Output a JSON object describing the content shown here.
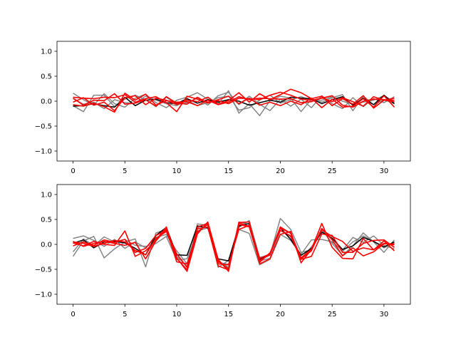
{
  "chart_data": [
    {
      "type": "line",
      "title": "",
      "xlabel": "",
      "ylabel": "",
      "xlim": [
        -1.55,
        32.55
      ],
      "ylim": [
        -1.2,
        1.2
      ],
      "xticks": [
        0,
        5,
        10,
        15,
        20,
        25,
        30
      ],
      "yticks": [
        -1.0,
        -0.5,
        0.0,
        0.5,
        1.0
      ],
      "xtick_labels": [
        "0",
        "5",
        "10",
        "15",
        "20",
        "25",
        "30"
      ],
      "ytick_labels": [
        "−1.0",
        "−0.5",
        "0.0",
        "0.5",
        "1.0"
      ],
      "grid": false,
      "x": [
        0,
        1,
        2,
        3,
        4,
        5,
        6,
        7,
        8,
        9,
        10,
        11,
        12,
        13,
        14,
        15,
        16,
        17,
        18,
        19,
        20,
        21,
        22,
        23,
        24,
        25,
        26,
        27,
        28,
        29,
        30,
        31
      ],
      "series": [
        {
          "color": "#808080",
          "values": [
            0.16,
            0.03,
            -0.08,
            0.15,
            -0.05,
            -0.12,
            0.06,
            0.14,
            -0.03,
            -0.13,
            0.02,
            0.08,
            0.17,
            0.04,
            -0.06,
            0.21,
            -0.24,
            -0.05,
            -0.29,
            0.01,
            0.1,
            0.06,
            -0.21,
            0.04,
            -0.02,
            0.07,
            0.13,
            -0.19,
            0.1,
            -0.07,
            0.03,
            -0.05
          ]
        },
        {
          "color": "#808080",
          "values": [
            -0.09,
            -0.21,
            0.12,
            0.12,
            -0.11,
            0.04,
            0.12,
            0.03,
            -0.11,
            0.08,
            -0.07,
            -0.03,
            0.06,
            -0.08,
            0.11,
            0.18,
            -0.07,
            0.1,
            -0.06,
            -0.19,
            0.04,
            -0.1,
            0.04,
            -0.13,
            0.11,
            -0.05,
            -0.15,
            0.07,
            -0.11,
            0.05,
            -0.03,
            0.09
          ]
        },
        {
          "color": "#808080",
          "values": [
            0.05,
            -0.06,
            -0.02,
            -0.15,
            0.03,
            -0.03,
            -0.04,
            0.1,
            0.02,
            -0.05,
            -0.09,
            0.02,
            -0.09,
            -0.03,
            0.07,
            0.1,
            -0.18,
            -0.13,
            0.02,
            0.12,
            -0.04,
            0.03,
            0.09,
            0.02,
            0.02,
            0.09,
            0.0,
            -0.06,
            -0.02,
            0.02,
            0.11,
            -0.02
          ]
        },
        {
          "color": "#000000",
          "values": [
            -0.1,
            -0.09,
            -0.05,
            -0.09,
            -0.12,
            0.08,
            -0.09,
            0.02,
            0.04,
            -0.03,
            -0.05,
            0.05,
            -0.04,
            0.03,
            -0.02,
            0.03,
            0.0,
            -0.08,
            -0.03,
            0.02,
            -0.02,
            0.08,
            0.06,
            0.05,
            -0.05,
            0.03,
            0.09,
            -0.08,
            0.06,
            -0.07,
            0.12,
            -0.05
          ]
        },
        {
          "color": "#ff0000",
          "values": [
            0.08,
            0.06,
            0.05,
            0.08,
            0.07,
            0.13,
            -0.02,
            0.05,
            0.09,
            -0.03,
            -0.21,
            0.1,
            0.04,
            -0.02,
            0.01,
            -0.05,
            0.06,
            0.05,
            0.03,
            0.12,
            0.18,
            0.12,
            0.04,
            0.02,
            0.06,
            0.11,
            -0.08,
            -0.12,
            0.0,
            0.04,
            0.03,
            0.02
          ]
        },
        {
          "color": "#ff0000",
          "values": [
            -0.02,
            0.07,
            -0.08,
            -0.02,
            -0.19,
            0.07,
            0.11,
            -0.07,
            0.06,
            0.02,
            -0.07,
            0.02,
            -0.01,
            0.08,
            -0.06,
            0.01,
            0.17,
            -0.02,
            0.15,
            0.03,
            0.13,
            0.24,
            0.17,
            0.05,
            0.1,
            -0.09,
            0.05,
            -0.06,
            0.11,
            -0.14,
            0.02,
            0.06
          ]
        },
        {
          "color": "#ff0000",
          "values": [
            0.06,
            -0.08,
            0.02,
            0.01,
            0.15,
            -0.06,
            -0.04,
            0.03,
            -0.1,
            0.09,
            -0.04,
            -0.06,
            0.08,
            -0.04,
            0.03,
            0.1,
            -0.05,
            0.06,
            -0.08,
            -0.02,
            -0.09,
            0.0,
            -0.07,
            0.06,
            -0.13,
            0.04,
            -0.12,
            -0.1,
            0.05,
            -0.12,
            0.11,
            -0.12
          ]
        },
        {
          "color": "#ff0000",
          "values": [
            -0.07,
            -0.1,
            -0.04,
            -0.11,
            -0.22,
            0.16,
            0.02,
            0.14,
            -0.08,
            0.01,
            -0.02,
            -0.01,
            -0.09,
            0.02,
            -0.07,
            -0.02,
            0.09,
            0.03,
            0.06,
            0.05,
            0.04,
            0.05,
            -0.03,
            -0.01,
            0.07,
            -0.01,
            0.07,
            -0.01,
            -0.1,
            0.09,
            0.02,
            -0.01
          ]
        }
      ]
    },
    {
      "type": "line",
      "title": "",
      "xlabel": "",
      "ylabel": "",
      "xlim": [
        -1.55,
        32.55
      ],
      "ylim": [
        -1.2,
        1.2
      ],
      "xticks": [
        0,
        5,
        10,
        15,
        20,
        25,
        30
      ],
      "yticks": [
        -1.0,
        -0.5,
        0.0,
        0.5,
        1.0
      ],
      "xtick_labels": [
        "0",
        "5",
        "10",
        "15",
        "20",
        "25",
        "30"
      ],
      "ytick_labels": [
        "−1.0",
        "−0.5",
        "0.0",
        "0.5",
        "1.0"
      ],
      "grid": false,
      "x": [
        0,
        1,
        2,
        3,
        4,
        5,
        6,
        7,
        8,
        9,
        10,
        11,
        12,
        13,
        14,
        15,
        16,
        17,
        18,
        19,
        20,
        21,
        22,
        23,
        24,
        25,
        26,
        27,
        28,
        29,
        30,
        31
      ],
      "series": [
        {
          "color": "#808080",
          "values": [
            -0.24,
            0.07,
            0.16,
            -0.27,
            -0.09,
            0.05,
            0.11,
            -0.45,
            0.23,
            0.3,
            -0.24,
            -0.44,
            0.41,
            0.38,
            -0.46,
            -0.32,
            0.34,
            0.48,
            -0.26,
            -0.22,
            0.52,
            0.3,
            -0.16,
            -0.11,
            0.3,
            0.02,
            -0.22,
            -0.03,
            0.23,
            0.05,
            -0.16,
            0.09
          ]
        },
        {
          "color": "#808080",
          "values": [
            0.12,
            0.17,
            0.08,
            -0.04,
            0.1,
            -0.08,
            0.05,
            -0.07,
            0.14,
            0.2,
            -0.13,
            -0.39,
            0.33,
            0.43,
            -0.34,
            -0.46,
            0.45,
            0.4,
            -0.33,
            -0.28,
            0.28,
            0.15,
            -0.29,
            -0.05,
            0.24,
            0.13,
            -0.14,
            0.05,
            0.17,
            0.06,
            -0.07,
            0.03
          ]
        },
        {
          "color": "#808080",
          "values": [
            -0.15,
            0.11,
            -0.03,
            0.15,
            0.05,
            0.1,
            -0.02,
            -0.04,
            0.02,
            0.16,
            -0.31,
            -0.29,
            0.27,
            0.33,
            -0.36,
            -0.4,
            0.3,
            0.22,
            -0.41,
            -0.3,
            0.2,
            0.08,
            -0.2,
            0.09,
            0.1,
            0.05,
            -0.12,
            0.14,
            0.04,
            0.17,
            -0.02,
            -0.09
          ]
        },
        {
          "color": "#000000",
          "values": [
            0.02,
            0.09,
            -0.07,
            0.05,
            0.06,
            0.03,
            -0.08,
            -0.21,
            0.18,
            0.34,
            -0.21,
            -0.22,
            0.37,
            0.33,
            -0.29,
            -0.33,
            0.37,
            0.42,
            -0.3,
            -0.2,
            0.33,
            0.1,
            -0.22,
            -0.08,
            0.25,
            0.12,
            -0.1,
            -0.03,
            0.14,
            0.06,
            -0.05,
            0.05
          ]
        },
        {
          "color": "#ff0000",
          "values": [
            0.03,
            -0.03,
            0.06,
            0.0,
            -0.02,
            0.27,
            -0.24,
            -0.13,
            0.08,
            0.35,
            -0.27,
            -0.54,
            0.21,
            0.45,
            -0.3,
            -0.54,
            0.44,
            0.45,
            -0.39,
            -0.29,
            0.2,
            0.26,
            -0.37,
            -0.1,
            0.42,
            -0.06,
            -0.28,
            -0.29,
            0.12,
            -0.11,
            0.07,
            -0.13
          ]
        },
        {
          "color": "#ff0000",
          "values": [
            0.06,
            -0.04,
            0.02,
            0.06,
            0.02,
            -0.02,
            0.04,
            -0.29,
            0.07,
            0.31,
            -0.35,
            -0.39,
            0.25,
            0.4,
            -0.39,
            -0.41,
            0.3,
            0.38,
            -0.28,
            -0.19,
            0.35,
            0.22,
            -0.27,
            -0.1,
            0.29,
            0.16,
            0.06,
            -0.14,
            -0.07,
            -0.11,
            0.02,
            -0.01
          ]
        },
        {
          "color": "#ff0000",
          "values": [
            -0.03,
            0.05,
            -0.02,
            0.09,
            0.04,
            0.1,
            -0.16,
            -0.08,
            0.18,
            0.28,
            -0.19,
            -0.46,
            0.31,
            0.35,
            -0.43,
            -0.51,
            0.4,
            0.35,
            -0.36,
            -0.17,
            0.28,
            0.17,
            -0.3,
            -0.24,
            0.21,
            0.18,
            -0.16,
            -0.16,
            0.02,
            0.08,
            0.09,
            -0.06
          ]
        },
        {
          "color": "#ff0000",
          "values": [
            0.05,
            0.02,
            -0.04,
            0.02,
            0.08,
            0.05,
            -0.12,
            -0.21,
            0.12,
            0.26,
            -0.28,
            -0.51,
            0.35,
            0.42,
            -0.34,
            -0.49,
            0.43,
            0.36,
            -0.32,
            -0.21,
            0.32,
            0.23,
            -0.29,
            -0.13,
            0.32,
            0.09,
            -0.23,
            -0.07,
            -0.23,
            -0.15,
            0.01,
            0.01
          ]
        }
      ]
    }
  ]
}
